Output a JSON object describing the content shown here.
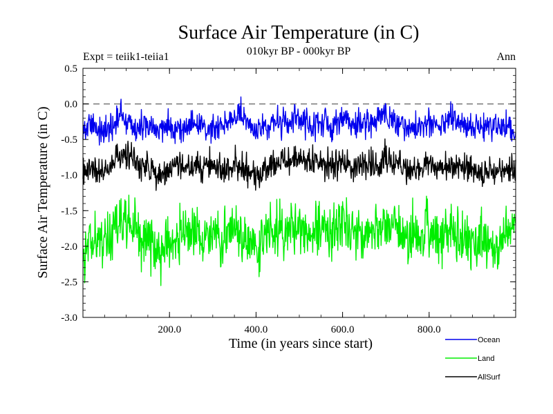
{
  "header": {
    "title": "Surface Air Temperature (in C)",
    "subtitle": "010kyr BP - 000kyr BP",
    "expt_label": "Expt = teiik1-teiia1",
    "season_label": "Ann"
  },
  "chart_data": {
    "type": "line",
    "xlabel": "Time (in years since start)",
    "ylabel": "Surface Air Temperature (in C)",
    "xlim": [
      0,
      1000
    ],
    "ylim": [
      -3.0,
      0.5
    ],
    "x_ticks": [
      {
        "value": 200,
        "label": "200.0"
      },
      {
        "value": 400,
        "label": "400.0"
      },
      {
        "value": 600,
        "label": "600.0"
      },
      {
        "value": 800,
        "label": "800.0"
      }
    ],
    "y_ticks": [
      {
        "value": 0.5,
        "label": "0.5"
      },
      {
        "value": 0.0,
        "label": "0.0"
      },
      {
        "value": -0.5,
        "label": "-0.5"
      },
      {
        "value": -1.0,
        "label": "-1.0"
      },
      {
        "value": -1.5,
        "label": "-1.5"
      },
      {
        "value": -2.0,
        "label": "-2.0"
      },
      {
        "value": -2.5,
        "label": "-2.5"
      },
      {
        "value": -3.0,
        "label": "-3.0"
      }
    ],
    "reference_line": {
      "y": 0.0,
      "style": "dashed",
      "color": "#777777"
    },
    "legend_position": "bottom-right",
    "series": [
      {
        "name": "Ocean",
        "color": "#0000ee",
        "x": [
          0,
          25,
          50,
          75,
          90,
          100,
          125,
          150,
          175,
          200,
          225,
          250,
          275,
          300,
          325,
          350,
          360,
          375,
          400,
          425,
          450,
          475,
          500,
          525,
          550,
          575,
          600,
          625,
          650,
          675,
          700,
          725,
          750,
          775,
          800,
          825,
          850,
          875,
          900,
          925,
          950,
          975,
          1000
        ],
        "values": [
          -0.35,
          -0.3,
          -0.4,
          -0.3,
          -0.1,
          -0.25,
          -0.35,
          -0.3,
          -0.4,
          -0.3,
          -0.35,
          -0.3,
          -0.3,
          -0.35,
          -0.25,
          -0.2,
          -0.1,
          -0.3,
          -0.35,
          -0.3,
          -0.25,
          -0.3,
          -0.2,
          -0.3,
          -0.25,
          -0.35,
          -0.2,
          -0.3,
          -0.25,
          -0.3,
          -0.1,
          -0.3,
          -0.35,
          -0.3,
          -0.25,
          -0.35,
          -0.2,
          -0.3,
          -0.35,
          -0.3,
          -0.35,
          -0.3,
          -0.4
        ]
      },
      {
        "name": "Land",
        "color": "#00ee00",
        "x": [
          0,
          25,
          50,
          75,
          100,
          125,
          150,
          175,
          200,
          225,
          250,
          275,
          300,
          325,
          350,
          375,
          400,
          425,
          450,
          475,
          500,
          525,
          550,
          575,
          600,
          625,
          650,
          675,
          700,
          725,
          750,
          775,
          800,
          825,
          850,
          875,
          900,
          925,
          950,
          975,
          1000
        ],
        "values": [
          -2.0,
          -1.9,
          -1.95,
          -1.7,
          -1.6,
          -1.8,
          -1.9,
          -2.1,
          -1.9,
          -1.85,
          -1.8,
          -1.9,
          -1.8,
          -1.85,
          -1.75,
          -1.9,
          -2.05,
          -1.85,
          -1.75,
          -1.8,
          -1.7,
          -1.75,
          -1.8,
          -1.85,
          -1.7,
          -1.8,
          -1.75,
          -1.8,
          -1.7,
          -1.8,
          -1.9,
          -1.85,
          -1.75,
          -1.9,
          -1.8,
          -1.85,
          -1.95,
          -1.9,
          -2.0,
          -1.85,
          -1.8
        ]
      },
      {
        "name": "AllSurf",
        "color": "#000000",
        "x": [
          0,
          25,
          50,
          75,
          100,
          125,
          150,
          175,
          200,
          225,
          250,
          275,
          300,
          325,
          350,
          375,
          400,
          425,
          450,
          475,
          500,
          525,
          550,
          575,
          600,
          625,
          650,
          675,
          700,
          725,
          750,
          775,
          800,
          825,
          850,
          875,
          900,
          925,
          950,
          975,
          1000
        ],
        "values": [
          -0.95,
          -0.9,
          -1.0,
          -0.8,
          -0.7,
          -0.85,
          -0.9,
          -1.05,
          -0.9,
          -0.9,
          -0.85,
          -0.9,
          -0.85,
          -0.9,
          -0.8,
          -0.9,
          -1.0,
          -0.9,
          -0.8,
          -0.85,
          -0.75,
          -0.8,
          -0.85,
          -0.9,
          -0.8,
          -0.85,
          -0.8,
          -0.85,
          -0.75,
          -0.85,
          -0.95,
          -0.9,
          -0.85,
          -0.95,
          -0.85,
          -0.9,
          -0.95,
          -0.95,
          -1.0,
          -0.9,
          -0.9
        ]
      }
    ]
  }
}
